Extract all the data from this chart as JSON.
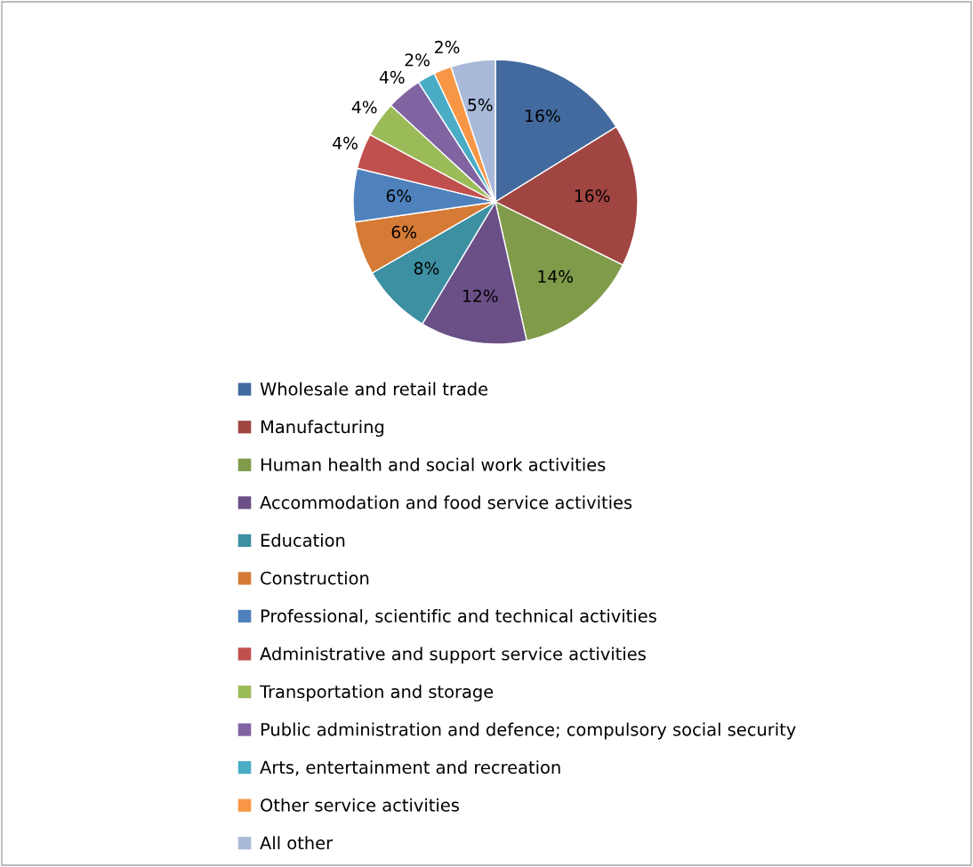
{
  "chart_data": {
    "type": "pie",
    "categories": [
      "Wholesale and retail trade",
      "Manufacturing",
      "Human health and social work activities",
      "Accommodation and food service activities",
      "Education",
      "Construction",
      "Professional, scientific and technical activities",
      "Administrative and support service activities",
      "Transportation and storage",
      "Public administration and defence; compulsory social security",
      "Arts, entertainment and recreation",
      "Other service activities",
      "All other"
    ],
    "values": [
      16,
      16,
      14,
      12,
      8,
      6,
      6,
      4,
      4,
      4,
      2,
      2,
      5
    ],
    "value_labels": [
      "16%",
      "16%",
      "14%",
      "12%",
      "8%",
      "6%",
      "6%",
      "4%",
      "4%",
      "4%",
      "2%",
      "2%",
      "5%"
    ],
    "colors": [
      "#426a9e",
      "#a04542",
      "#809b4a",
      "#6a5086",
      "#3d8fa2",
      "#d57b35",
      "#4f81bd",
      "#c0504d",
      "#9bbb59",
      "#8064a2",
      "#4bacc6",
      "#f79646",
      "#a9b9d9"
    ],
    "legend": "bottom"
  }
}
